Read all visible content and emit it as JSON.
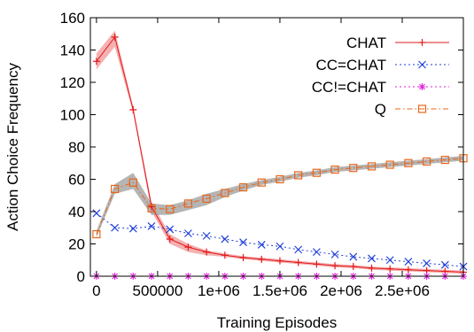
{
  "chart_data": {
    "type": "line",
    "title": "",
    "xlabel": "Training Episodes",
    "ylabel": "Action Choice Frequency",
    "xlim": [
      -50000,
      3000000
    ],
    "ylim": [
      0,
      160
    ],
    "xticks": [
      0,
      500000,
      1000000,
      1500000,
      2000000,
      2500000
    ],
    "xtick_labels": [
      "0",
      "500000",
      "1e+06",
      "1.5e+06",
      "2e+06",
      "2.5e+06"
    ],
    "yticks": [
      0,
      20,
      40,
      60,
      80,
      100,
      120,
      140,
      160
    ],
    "ytick_labels": [
      "0",
      "20",
      "40",
      "60",
      "80",
      "100",
      "120",
      "140",
      "160"
    ],
    "grid": false,
    "legend_position": "right",
    "series": [
      {
        "name": "CHAT",
        "color": "#e41a1c",
        "band_color": "#f2a3a3",
        "line_style": "solid",
        "marker": "plus",
        "x": [
          0,
          150000,
          300000,
          450000,
          600000,
          750000,
          900000,
          1050000,
          1200000,
          1350000,
          1500000,
          1650000,
          1800000,
          1950000,
          2100000,
          2250000,
          2400000,
          2550000,
          2700000,
          2850000,
          3000000
        ],
        "values": [
          133,
          148,
          103,
          43,
          23,
          18,
          15,
          13,
          11.5,
          10.5,
          9.5,
          8.5,
          7.5,
          6.5,
          6,
          5,
          4.5,
          4,
          3.5,
          3,
          2.5
        ],
        "band": [
          [
            128,
            138
          ],
          [
            142,
            152
          ],
          [
            101,
            105
          ],
          [
            40,
            46
          ],
          [
            20,
            26
          ],
          [
            15,
            20
          ],
          [
            13,
            16
          ],
          [
            12,
            14
          ],
          [
            10.5,
            12.5
          ],
          [
            9.5,
            11.5
          ],
          [
            8.5,
            10.5
          ],
          [
            7.5,
            9.5
          ],
          [
            6.5,
            8.5
          ],
          [
            5.5,
            7.5
          ],
          [
            5,
            7
          ],
          [
            4,
            6
          ],
          [
            3.5,
            5.5
          ],
          [
            3,
            5
          ],
          [
            2.5,
            4.5
          ],
          [
            2,
            4
          ],
          [
            1.5,
            3.5
          ]
        ]
      },
      {
        "name": "CC=CHAT",
        "color": "#1f3fd8",
        "line_style": "dotted",
        "marker": "x",
        "x": [
          0,
          150000,
          300000,
          450000,
          600000,
          750000,
          900000,
          1050000,
          1200000,
          1350000,
          1500000,
          1650000,
          1800000,
          1950000,
          2100000,
          2250000,
          2400000,
          2550000,
          2700000,
          2850000,
          3000000
        ],
        "values": [
          39,
          30,
          29.5,
          31,
          29,
          26.5,
          25,
          23,
          21,
          19.5,
          18.5,
          16.5,
          15,
          13.5,
          12,
          11,
          10,
          9,
          8,
          7,
          6
        ]
      },
      {
        "name": "CC!=CHAT",
        "color": "#e020d8",
        "line_style": "dotted",
        "marker": "asterisk",
        "x": [
          0,
          150000,
          300000,
          450000,
          600000,
          750000,
          900000,
          1050000,
          1200000,
          1350000,
          1500000,
          1650000,
          1800000,
          1950000,
          2100000,
          2250000,
          2400000,
          2550000,
          2700000,
          2850000,
          3000000
        ],
        "values": [
          0,
          0,
          0,
          0,
          0,
          0,
          0,
          0,
          0,
          0,
          0,
          0,
          0,
          0,
          0,
          0,
          0,
          0,
          0,
          0,
          0
        ]
      },
      {
        "name": "Q",
        "color": "#e8661a",
        "band_color": "#a8a8a8",
        "line_style": "dash-dot",
        "marker": "square",
        "x": [
          0,
          150000,
          300000,
          450000,
          600000,
          750000,
          900000,
          1050000,
          1200000,
          1350000,
          1500000,
          1650000,
          1800000,
          1950000,
          2100000,
          2250000,
          2400000,
          2550000,
          2700000,
          2850000,
          3000000
        ],
        "values": [
          26,
          54,
          58,
          42,
          41.5,
          45,
          48,
          51.5,
          55,
          58,
          60,
          62.5,
          64,
          66,
          67,
          68,
          69,
          70,
          71,
          72,
          73
        ],
        "band": [
          [
            24,
            28
          ],
          [
            51,
            57
          ],
          [
            54,
            64
          ],
          [
            38,
            45
          ],
          [
            38,
            44
          ],
          [
            41,
            47
          ],
          [
            44,
            51
          ],
          [
            49,
            54
          ],
          [
            53,
            57
          ],
          [
            56.5,
            59.5
          ],
          [
            58.5,
            61.5
          ],
          [
            61,
            64
          ],
          [
            62.5,
            65.5
          ],
          [
            64.5,
            67.5
          ],
          [
            65.5,
            68.5
          ],
          [
            66.5,
            69.5
          ],
          [
            67.5,
            70.5
          ],
          [
            68.5,
            71.5
          ],
          [
            69.5,
            72.5
          ],
          [
            70.5,
            73.5
          ],
          [
            71.5,
            74.5
          ]
        ]
      }
    ]
  }
}
